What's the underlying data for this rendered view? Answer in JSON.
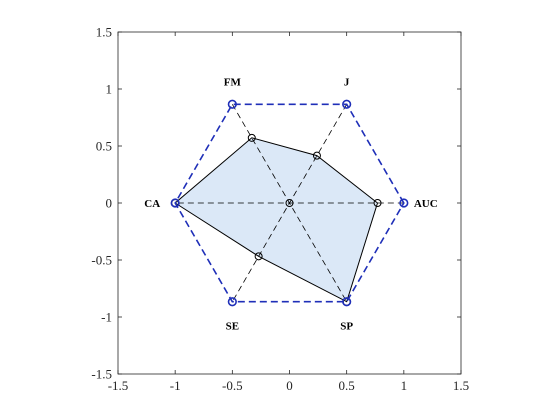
{
  "chart_data": {
    "type": "radar",
    "title": "",
    "xlabel": "",
    "ylabel": "",
    "xlim": [
      -1.5,
      1.5
    ],
    "ylim": [
      -1.5,
      1.5
    ],
    "x_ticks": [
      -1.5,
      -1,
      -0.5,
      0,
      0.5,
      1,
      1.5
    ],
    "x_tick_labels": [
      "-1.5",
      "-1",
      "-0.5",
      "0",
      "0.5",
      "1",
      "1.5"
    ],
    "y_ticks": [
      1.5,
      1,
      0.5,
      0,
      -0.5,
      -1,
      -1.5
    ],
    "y_tick_labels": [
      "1.5",
      "1",
      "0.5",
      "0",
      "-0.5",
      "-1",
      "-1.5"
    ],
    "grid": false,
    "box": true,
    "axes": [
      {
        "label": "AUC",
        "angle_deg": 0,
        "value": 0.77
      },
      {
        "label": "J",
        "angle_deg": 60,
        "value": 0.48
      },
      {
        "label": "FM",
        "angle_deg": 120,
        "value": 0.66
      },
      {
        "label": "CA",
        "angle_deg": 180,
        "value": 1.0
      },
      {
        "label": "SE",
        "angle_deg": 240,
        "value": 0.54
      },
      {
        "label": "SP",
        "angle_deg": 300,
        "value": 1.0
      }
    ],
    "outer_radius": 1.0,
    "colors": {
      "fill": "#dbe8f7",
      "polygon_edge": "#000000",
      "outer_hexagon": "#1f2fb8",
      "spokes": "#000000",
      "axes_frame": "#262626"
    }
  }
}
